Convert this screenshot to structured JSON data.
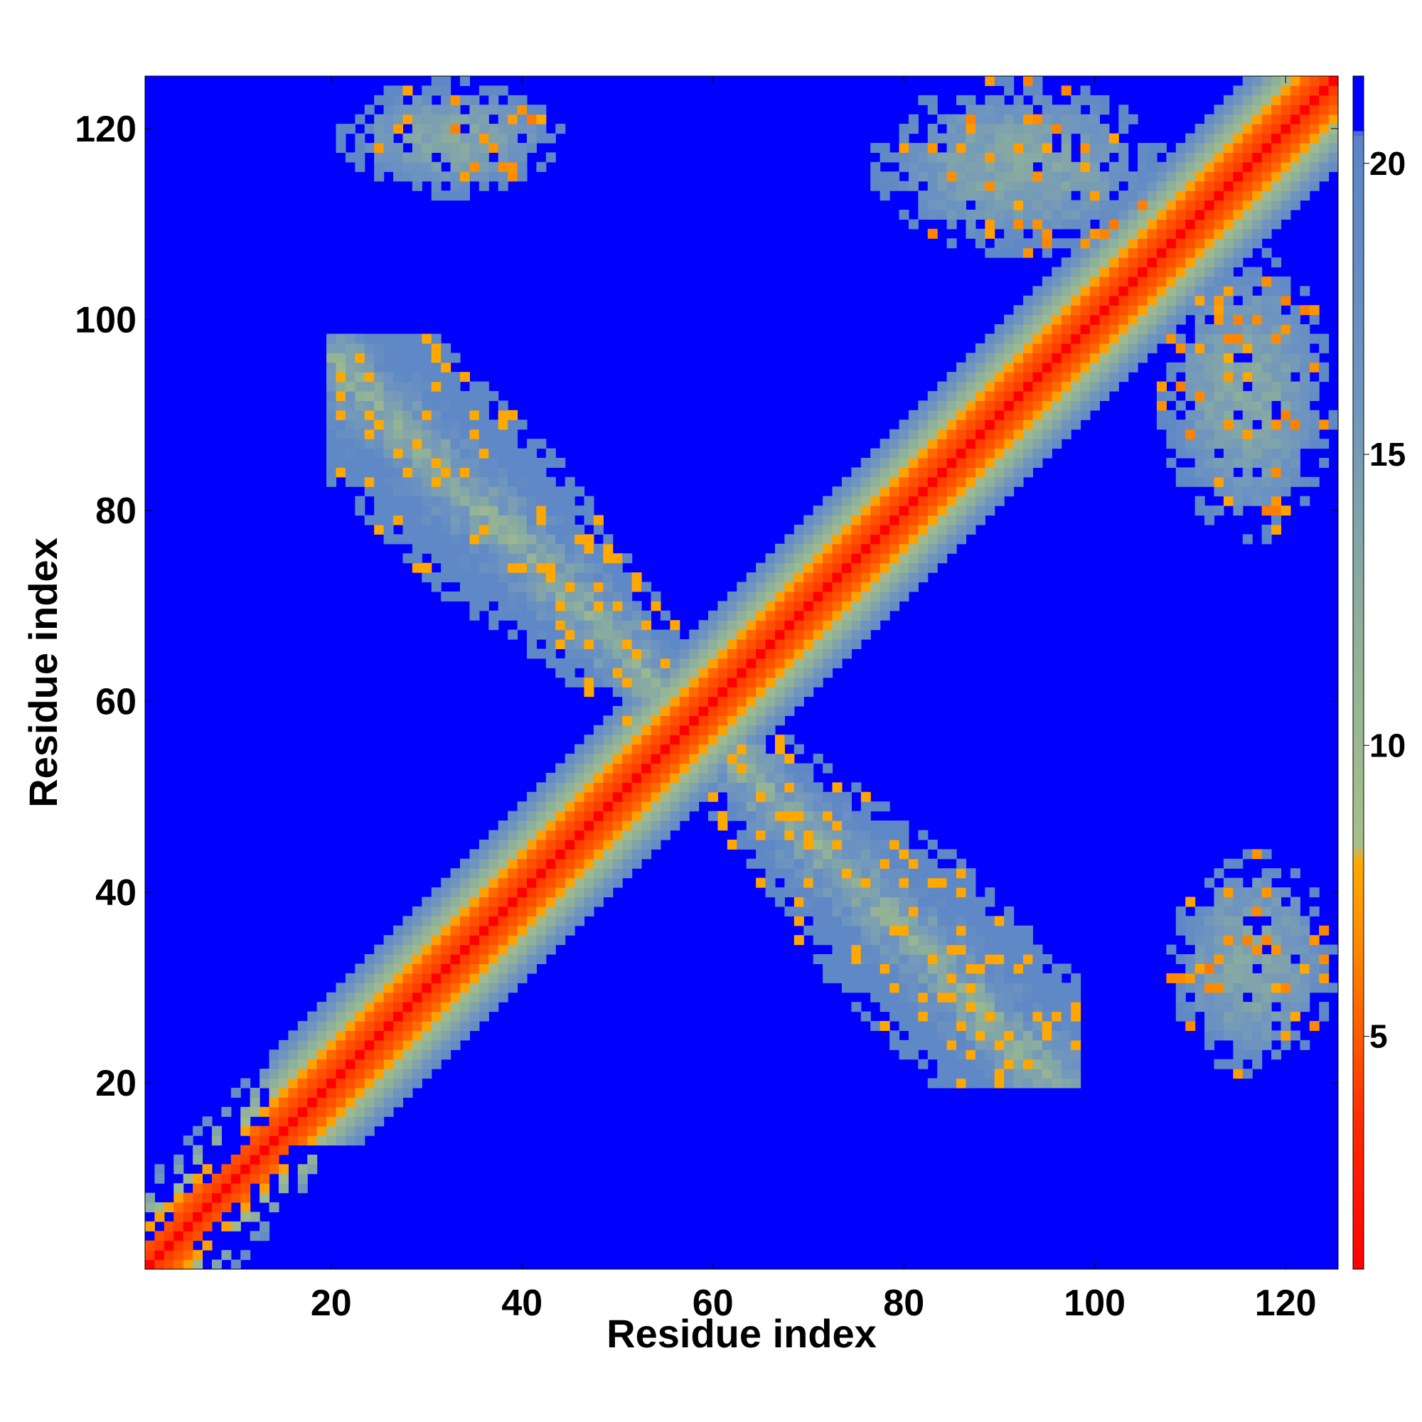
{
  "chart_data": {
    "type": "heatmap",
    "title": "",
    "xlabel": "Residue index",
    "ylabel": "Residue index",
    "n_residues": 125,
    "xlim": [
      0.5,
      125.5
    ],
    "ylim": [
      0.5,
      125.5
    ],
    "x_ticks": [
      20,
      40,
      60,
      80,
      100,
      120
    ],
    "y_ticks": [
      20,
      40,
      60,
      80,
      100,
      120
    ],
    "colorbar": {
      "range": [
        1,
        21.5
      ],
      "ticks": [
        5,
        10,
        15,
        20
      ],
      "stops": [
        {
          "value": 1,
          "color": "#ff0000"
        },
        {
          "value": 3.5,
          "color": "#ff2a00"
        },
        {
          "value": 5,
          "color": "#ff5a00"
        },
        {
          "value": 6.5,
          "color": "#ff8800"
        },
        {
          "value": 8,
          "color": "#ffaa00"
        },
        {
          "value": 8.3,
          "color": "#a7bf8a"
        },
        {
          "value": 12,
          "color": "#8fb09a"
        },
        {
          "value": 16,
          "color": "#6f95bf"
        },
        {
          "value": 20.5,
          "color": "#5a84c8"
        },
        {
          "value": 20.6,
          "color": "#0000ff"
        },
        {
          "value": 21.5,
          "color": "#0000ff"
        }
      ]
    },
    "background_value": 21.5,
    "features": [
      {
        "kind": "diagonal-band",
        "i_range": [
          1,
          125
        ],
        "half_width": 9,
        "profile": "distance grows with |i-j|"
      },
      {
        "kind": "anti-diagonal-cross",
        "center": [
          58,
          58
        ],
        "i_range": [
          20,
          98
        ],
        "j_range": [
          20,
          98
        ],
        "values_range": [
          5,
          19
        ]
      },
      {
        "kind": "patch",
        "x_range": [
          21,
          44
        ],
        "y_range": [
          113,
          125
        ],
        "values_range": [
          5,
          19
        ]
      },
      {
        "kind": "patch",
        "x_range": [
          77,
          107
        ],
        "y_range": [
          107,
          125
        ],
        "values_range": [
          5,
          19
        ]
      },
      {
        "kind": "patch",
        "x_range": [
          107,
          125
        ],
        "y_range": [
          77,
          107
        ],
        "values_range": [
          5,
          19
        ]
      },
      {
        "kind": "patch",
        "x_range": [
          108,
          125
        ],
        "y_range": [
          21,
          44
        ],
        "values_range": [
          5,
          19
        ]
      }
    ]
  }
}
